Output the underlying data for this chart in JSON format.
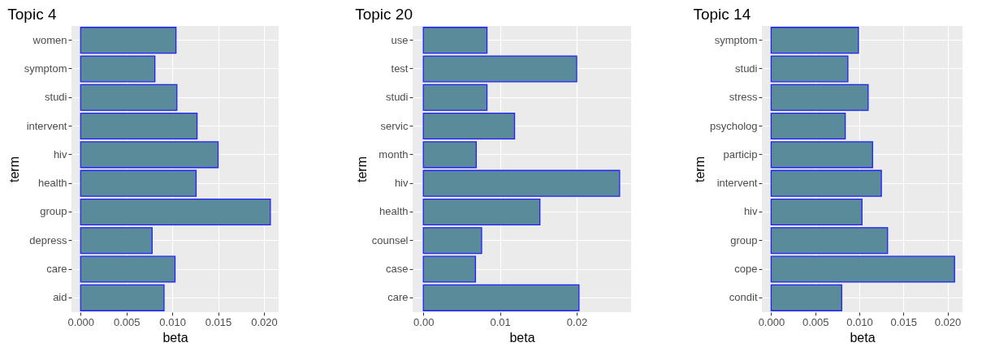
{
  "chart_data": [
    {
      "type": "bar",
      "orientation": "horizontal",
      "title": "Topic 4",
      "xlabel": "beta",
      "ylabel": "term",
      "categories": [
        "women",
        "symptom",
        "studi",
        "intervent",
        "hiv",
        "health",
        "group",
        "depress",
        "care",
        "aid"
      ],
      "values": [
        0.0104,
        0.0081,
        0.0105,
        0.0127,
        0.015,
        0.0126,
        0.0207,
        0.0078,
        0.0103,
        0.0091
      ],
      "color": "#5a8b9b",
      "xlim": [
        -0.001,
        0.0216
      ],
      "xticks": [
        {
          "value": 0,
          "label": "0.000"
        },
        {
          "value": 0.005,
          "label": "0.005"
        },
        {
          "value": 0.01,
          "label": "0.010"
        },
        {
          "value": 0.015,
          "label": "0.015"
        },
        {
          "value": 0.02,
          "label": "0.020"
        }
      ],
      "grid": true
    },
    {
      "type": "bar",
      "orientation": "horizontal",
      "title": "Topic 20",
      "xlabel": "beta",
      "ylabel": "term",
      "categories": [
        "use",
        "test",
        "studi",
        "servic",
        "month",
        "hiv",
        "health",
        "counsel",
        "case",
        "care"
      ],
      "values": [
        0.0083,
        0.02,
        0.0083,
        0.0119,
        0.0069,
        0.0256,
        0.0152,
        0.0076,
        0.0068,
        0.0203
      ],
      "color": "#5a8b9b",
      "xlim": [
        -0.0014,
        0.0271
      ],
      "xticks": [
        {
          "value": 0,
          "label": "0.00"
        },
        {
          "value": 0.01,
          "label": "0.01"
        },
        {
          "value": 0.02,
          "label": "0.02"
        }
      ],
      "grid": true
    },
    {
      "type": "bar",
      "orientation": "horizontal",
      "title": "Topic 14",
      "xlabel": "beta",
      "ylabel": "term",
      "categories": [
        "symptom",
        "studi",
        "stress",
        "psycholog",
        "particip",
        "intervent",
        "hiv",
        "group",
        "cope",
        "condit"
      ],
      "values": [
        0.0099,
        0.0087,
        0.011,
        0.0084,
        0.0115,
        0.0125,
        0.0103,
        0.0132,
        0.0208,
        0.008
      ],
      "color": "#5a8b9b",
      "xlim": [
        -0.00105,
        0.0217
      ],
      "xticks": [
        {
          "value": 0,
          "label": "0.000"
        },
        {
          "value": 0.005,
          "label": "0.005"
        },
        {
          "value": 0.01,
          "label": "0.010"
        },
        {
          "value": 0.015,
          "label": "0.015"
        },
        {
          "value": 0.02,
          "label": "0.020"
        }
      ],
      "grid": true
    }
  ]
}
